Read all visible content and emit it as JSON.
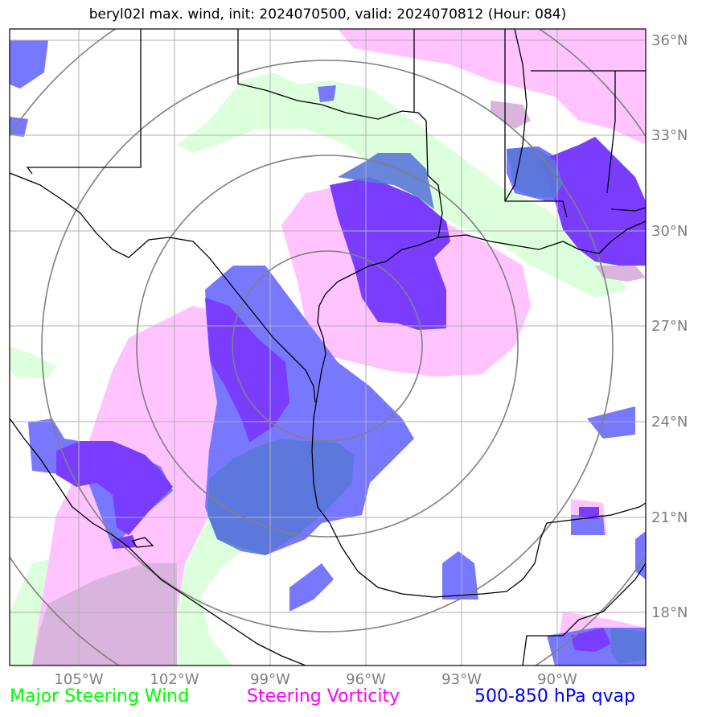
{
  "title": "beryl02l max. wind, init: 2024070500, valid: 2024070812 (Hour: 084)",
  "lon_ticks": [
    "105°W",
    "102°W",
    "99°W",
    "96°W",
    "93°W",
    "90°W"
  ],
  "lat_ticks": [
    "36°N",
    "33°N",
    "30°N",
    "27°N",
    "24°N",
    "21°N",
    "18°N"
  ],
  "legend": {
    "wind": {
      "label": "Major Steering Wind",
      "color": "#00ff00"
    },
    "vorticity": {
      "label": "Steering Vorticity",
      "color": "#ff00ff"
    },
    "qvap": {
      "label": "500-850 hPa qvap",
      "color": "#0000ff"
    }
  },
  "colors": {
    "wind_fill": "#dcffdc",
    "vorticity_fill": "#ffc3ff",
    "qvap_fill": "#7878ff",
    "qvap_strong_fill": "#7a3cff",
    "overlap_fill": "#6a5cdc",
    "range_rings": "#808080",
    "grid": "#b0b0b0",
    "coast": "#000000"
  }
}
